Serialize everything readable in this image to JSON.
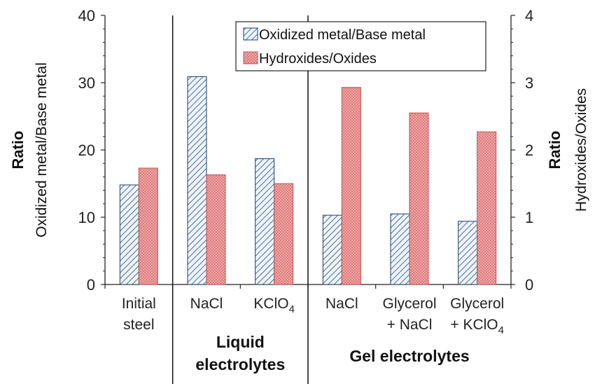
{
  "chart_data": {
    "type": "bar",
    "categories": [
      [
        "Initial",
        "steel"
      ],
      [
        "NaCl"
      ],
      [
        "KClO4"
      ],
      [
        "NaCl"
      ],
      [
        "Glycerol",
        "+ NaCl"
      ],
      [
        "Glycerol",
        "+ KClO4"
      ]
    ],
    "groups": [
      {
        "label": [
          "Liquid",
          "electrolytes"
        ],
        "span": [
          1,
          2
        ]
      },
      {
        "label": [
          "Gel electrolytes"
        ],
        "span": [
          3,
          5
        ]
      }
    ],
    "series": [
      {
        "name": "Oxidized metal/Base metal",
        "axis": "left",
        "color": "#1a3f6b",
        "fill": "#eef3f8",
        "pattern": "hatch",
        "values": [
          14.8,
          30.9,
          18.7,
          10.3,
          10.5,
          9.4
        ]
      },
      {
        "name": "Hydroxides/Oxides",
        "axis": "right",
        "color": "#c0504d",
        "fill": "#e88a8a",
        "pattern": "dots",
        "values": [
          1.73,
          1.63,
          1.5,
          2.93,
          2.55,
          2.27
        ]
      }
    ],
    "y_left": {
      "label_bold": "Ratio",
      "label": "Oxidized metal/Base metal",
      "ylim": [
        0,
        40
      ],
      "ticks": [
        0,
        10,
        20,
        30,
        40
      ]
    },
    "y_right": {
      "label_bold": "Ratio",
      "label": "Hydroxides/Oxides",
      "ylim": [
        0,
        4
      ],
      "ticks": [
        0,
        1,
        2,
        3,
        4
      ]
    },
    "legend": "top-right",
    "grid": false
  }
}
